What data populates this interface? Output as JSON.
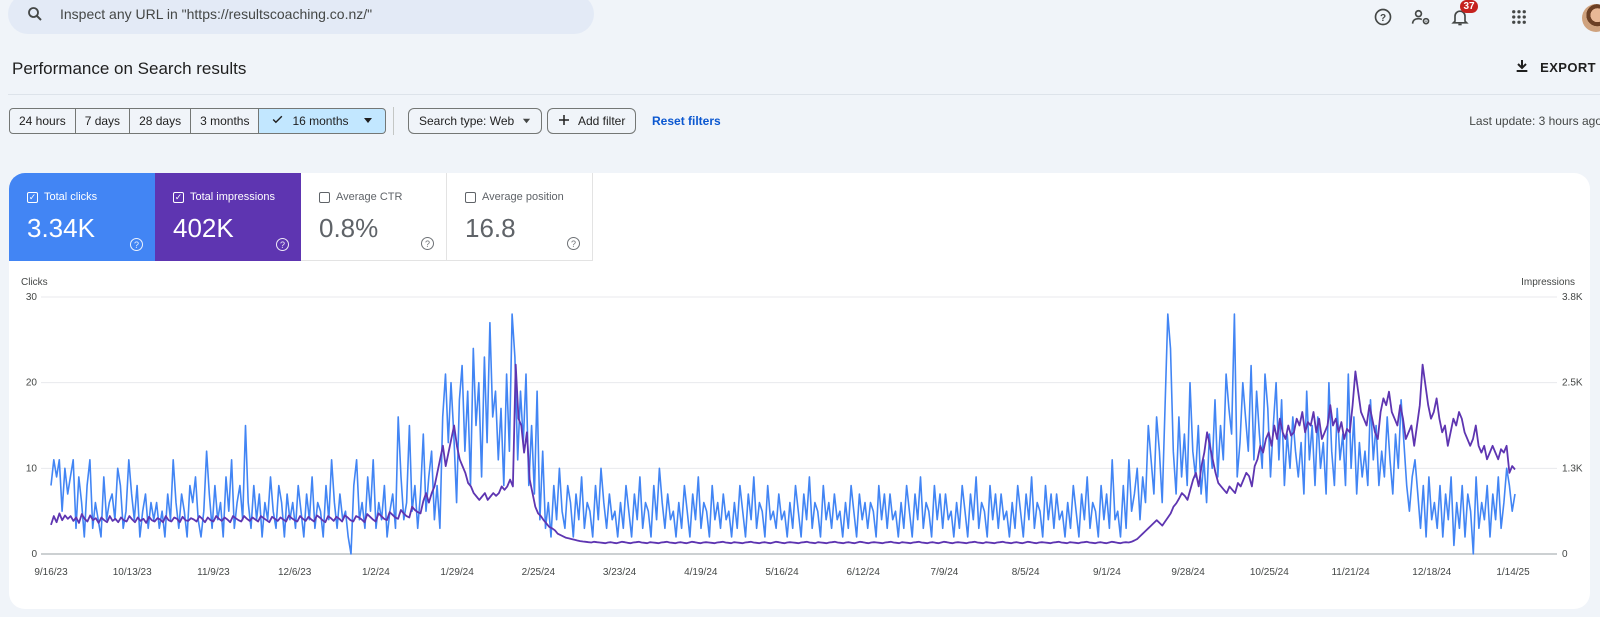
{
  "search": {
    "placeholder": "Inspect any URL in \"https://resultscoaching.co.nz/\""
  },
  "topbar": {
    "notifications_count": "37"
  },
  "page": {
    "title": "Performance on Search results",
    "export_label": "EXPORT"
  },
  "date_ranges": [
    "24 hours",
    "7 days",
    "28 days",
    "3 months",
    "16 months"
  ],
  "date_range_selected": "16 months",
  "filters": {
    "search_type": "Search type: Web",
    "add_filter": "Add filter",
    "reset": "Reset filters",
    "last_update": "Last update: 3 hours ago"
  },
  "metrics": [
    {
      "label": "Total clicks",
      "value": "3.34K",
      "checked": true,
      "color": "#4285f4"
    },
    {
      "label": "Total impressions",
      "value": "402K",
      "checked": true,
      "color": "#5e35b1"
    },
    {
      "label": "Average CTR",
      "value": "0.8%",
      "checked": false
    },
    {
      "label": "Average position",
      "value": "16.8",
      "checked": false
    }
  ],
  "chart_data": {
    "type": "line",
    "left_axis": {
      "label": "Clicks",
      "ticks": [
        "0",
        "10",
        "20",
        "30"
      ],
      "ylim": [
        0,
        30
      ]
    },
    "right_axis": {
      "label": "Impressions",
      "ticks": [
        "0",
        "1.3K",
        "2.5K",
        "3.8K"
      ],
      "ylim": [
        0,
        3800
      ]
    },
    "x_ticks": [
      "9/16/23",
      "10/13/23",
      "11/9/23",
      "12/6/23",
      "1/2/24",
      "1/29/24",
      "2/25/24",
      "3/23/24",
      "4/19/24",
      "5/16/24",
      "6/12/24",
      "7/9/24",
      "8/5/24",
      "9/1/24",
      "9/28/24",
      "10/25/24",
      "11/21/24",
      "12/18/24",
      "1/14/25"
    ],
    "grid": true,
    "series": [
      {
        "name": "Clicks",
        "color": "#4285f4",
        "axis": "left",
        "values": [
          8,
          11,
          9,
          11,
          5,
          10,
          7,
          9,
          11,
          3,
          9,
          6,
          2,
          8,
          11,
          3,
          6,
          4,
          2,
          9,
          4,
          6,
          7,
          4,
          10,
          8,
          3,
          5,
          11,
          7,
          4,
          8,
          2,
          5,
          7,
          3,
          6,
          4,
          6,
          3,
          5,
          2,
          7,
          4,
          11,
          6,
          3,
          7,
          5,
          2,
          8,
          6,
          9,
          4,
          2,
          5,
          12,
          7,
          3,
          8,
          4,
          6,
          2,
          9,
          5,
          11,
          3,
          6,
          8,
          4,
          15,
          6,
          3,
          8,
          4,
          7,
          2,
          6,
          4,
          9,
          5,
          3,
          8,
          6,
          2,
          7,
          4,
          6,
          3,
          8,
          5,
          2,
          7,
          4,
          9,
          3,
          6,
          5,
          2,
          8,
          4,
          11,
          6,
          3,
          7,
          4,
          5,
          2,
          0,
          8,
          11,
          4,
          6,
          3,
          9,
          5,
          11,
          3,
          6,
          4,
          8,
          2,
          5,
          7,
          3,
          16,
          9,
          4,
          6,
          15,
          5,
          8,
          3,
          7,
          14,
          5,
          9,
          12,
          4,
          8,
          3,
          16,
          21,
          13,
          20,
          14,
          6,
          18,
          22,
          12,
          19,
          8,
          24,
          15,
          20,
          9,
          23,
          13,
          27,
          16,
          19,
          11,
          17,
          8,
          21,
          12,
          28,
          23,
          11,
          19,
          13,
          21,
          8,
          15,
          7,
          19,
          4,
          12,
          3,
          6,
          2,
          8,
          4,
          10,
          5,
          3,
          8,
          6,
          2,
          7,
          4,
          9,
          3,
          6,
          5,
          2,
          8,
          4,
          10,
          6,
          3,
          7,
          4,
          5,
          2,
          6,
          3,
          8,
          5,
          2,
          7,
          4,
          9,
          3,
          6,
          5,
          2,
          8,
          4,
          10,
          6,
          3,
          7,
          4,
          5,
          2,
          6,
          3,
          8,
          5,
          2,
          7,
          4,
          9,
          3,
          6,
          5,
          2,
          8,
          4,
          6,
          3,
          7,
          4,
          5,
          2,
          6,
          3,
          8,
          5,
          2,
          7,
          4,
          9,
          3,
          6,
          5,
          2,
          8,
          4,
          5,
          3,
          7,
          4,
          5,
          2,
          6,
          3,
          8,
          5,
          2,
          7,
          4,
          9,
          3,
          6,
          5,
          2,
          8,
          4,
          6,
          3,
          7,
          4,
          5,
          2,
          6,
          3,
          8,
          5,
          2,
          7,
          4,
          6,
          3,
          6,
          5,
          2,
          8,
          4,
          7,
          3,
          7,
          4,
          5,
          2,
          6,
          3,
          8,
          5,
          2,
          7,
          4,
          9,
          3,
          6,
          5,
          2,
          8,
          4,
          7,
          3,
          7,
          4,
          5,
          2,
          6,
          3,
          8,
          5,
          2,
          7,
          4,
          9,
          3,
          6,
          5,
          2,
          8,
          4,
          7,
          3,
          7,
          4,
          5,
          2,
          6,
          3,
          8,
          5,
          2,
          7,
          4,
          9,
          3,
          6,
          5,
          2,
          8,
          4,
          7,
          3,
          7,
          4,
          5,
          2,
          6,
          3,
          8,
          5,
          2,
          7,
          4,
          9,
          3,
          6,
          5,
          2,
          8,
          4,
          7,
          3,
          11,
          4,
          5,
          2,
          8,
          3,
          11,
          5,
          7,
          10,
          4,
          9,
          6,
          15,
          11,
          7,
          16,
          12,
          6,
          17,
          28,
          24,
          12,
          7,
          16,
          9,
          14,
          8,
          20,
          12,
          9,
          15,
          7,
          11,
          6,
          14,
          10,
          18,
          9,
          15,
          11,
          21,
          17,
          14,
          28,
          9,
          13,
          20,
          16,
          12,
          22,
          11,
          19,
          14,
          10,
          21,
          17,
          9,
          15,
          20,
          11,
          18,
          8,
          14,
          10,
          16,
          12,
          9,
          13,
          7,
          19,
          11,
          15,
          8,
          16,
          10,
          13,
          7,
          20,
          12,
          8,
          17,
          11,
          14,
          8,
          21,
          10,
          16,
          7,
          13,
          9,
          12,
          8,
          18,
          11,
          15,
          8,
          12,
          9,
          16,
          11,
          7,
          14,
          10,
          18,
          13,
          8,
          5,
          9,
          11,
          7,
          3,
          8,
          2,
          9,
          4,
          6,
          3,
          8,
          2,
          7,
          4,
          9,
          1,
          6,
          3,
          8,
          2,
          7,
          5,
          0,
          9,
          3,
          6,
          4,
          8,
          2,
          7,
          4,
          9,
          3,
          6,
          10,
          8,
          5,
          7
        ]
      },
      {
        "name": "Impressions",
        "color": "#5e35b1",
        "axis": "right",
        "values": [
          430,
          560,
          470,
          600,
          500,
          570,
          520,
          560,
          490,
          540,
          460,
          590,
          520,
          480,
          570,
          500,
          530,
          460,
          540,
          500,
          470,
          560,
          490,
          520,
          470,
          540,
          500,
          480,
          560,
          510,
          470,
          540,
          490,
          520,
          460,
          550,
          500,
          480,
          530,
          510,
          470,
          560,
          500,
          480,
          540,
          520,
          470,
          550,
          500,
          490,
          530,
          510,
          480,
          560,
          520,
          470,
          540,
          500,
          480,
          560,
          520,
          490,
          540,
          510,
          470,
          560,
          530,
          500,
          480,
          560,
          520,
          490,
          540,
          510,
          480,
          560,
          530,
          500,
          470,
          550,
          520,
          490,
          540,
          510,
          480,
          570,
          530,
          500,
          480,
          560,
          520,
          490,
          550,
          510,
          480,
          570,
          540,
          500,
          470,
          560,
          530,
          490,
          550,
          520,
          480,
          570,
          540,
          500,
          480,
          560,
          540,
          510,
          470,
          590,
          550,
          510,
          480,
          600,
          560,
          520,
          500,
          620,
          580,
          540,
          520,
          650,
          600,
          560,
          540,
          700,
          650,
          620,
          600,
          780,
          900,
          760,
          900,
          1000,
          1200,
          1400,
          1600,
          1300,
          1500,
          1700,
          1900,
          1600,
          1400,
          1300,
          1200,
          1050,
          1000,
          900,
          850,
          800,
          850,
          900,
          800,
          850,
          900,
          860,
          900,
          1000,
          950,
          1000,
          1100,
          1000,
          2800,
          2000,
          1900,
          1500,
          1800,
          1100,
          900,
          700,
          600,
          560,
          500,
          450,
          400,
          380,
          350,
          300,
          280,
          260,
          240,
          230,
          220,
          210,
          200,
          190,
          185,
          180,
          175,
          170,
          180,
          175,
          170,
          165,
          160,
          170,
          175,
          165,
          160,
          170,
          180,
          175,
          165,
          160,
          170,
          175,
          180,
          170,
          165,
          160,
          175,
          170,
          165,
          160,
          170,
          175,
          180,
          170,
          165,
          160,
          170,
          175,
          165,
          160,
          170,
          180,
          175,
          165,
          160,
          170,
          175,
          170,
          165,
          160,
          170,
          175,
          180,
          170,
          165,
          160,
          175,
          170,
          165,
          160,
          170,
          175,
          180,
          170,
          165,
          160,
          170,
          175,
          165,
          160,
          170,
          180,
          175,
          165,
          160,
          170,
          175,
          170,
          165,
          160,
          170,
          175,
          180,
          170,
          165,
          160,
          175,
          170,
          165,
          160,
          170,
          175,
          180,
          170,
          165,
          160,
          170,
          175,
          165,
          160,
          170,
          180,
          175,
          165,
          160,
          170,
          175,
          170,
          165,
          160,
          170,
          175,
          180,
          170,
          165,
          160,
          175,
          170,
          165,
          160,
          170,
          175,
          180,
          170,
          165,
          160,
          170,
          175,
          165,
          160,
          170,
          180,
          175,
          165,
          160,
          170,
          175,
          170,
          165,
          160,
          170,
          175,
          180,
          170,
          165,
          160,
          175,
          170,
          165,
          160,
          170,
          175,
          180,
          170,
          165,
          160,
          170,
          175,
          165,
          160,
          170,
          180,
          175,
          165,
          160,
          170,
          175,
          170,
          165,
          160,
          170,
          175,
          180,
          170,
          165,
          160,
          175,
          170,
          165,
          160,
          170,
          175,
          180,
          170,
          165,
          160,
          170,
          175,
          165,
          160,
          170,
          180,
          175,
          165,
          160,
          170,
          175,
          170,
          180,
          200,
          220,
          260,
          300,
          340,
          380,
          420,
          460,
          500,
          460,
          420,
          480,
          540,
          600,
          700,
          750,
          820,
          900,
          860,
          800,
          950,
          1100,
          1200,
          1000,
          1300,
          1500,
          1800,
          1600,
          1400,
          1200,
          1050,
          1000,
          950,
          900,
          1000,
          950,
          900,
          1050,
          1000,
          1100,
          1200,
          1150,
          1000,
          1300,
          1400,
          1600,
          1500,
          1700,
          1800,
          1600,
          1900,
          1700,
          2000,
          1800,
          1700,
          1900,
          1750,
          1800,
          2000,
          1900,
          2100,
          1800,
          1950,
          1900,
          2100,
          1800,
          2000,
          1700,
          1800,
          1900,
          2200,
          1900,
          2000,
          1800,
          1950,
          1700,
          1850,
          1800,
          2200,
          2700,
          2400,
          2100,
          2000,
          1900,
          2200,
          2000,
          1800,
          1700,
          2100,
          2300,
          2200,
          2400,
          2100,
          2000,
          1900,
          2200,
          2000,
          1700,
          1800,
          1900,
          1600,
          1900,
          2200,
          2800,
          2500,
          2200,
          2000,
          2100,
          2300,
          2000,
          1800,
          1900,
          1600,
          1800,
          2000,
          1900,
          2100,
          2000,
          1800,
          1700,
          1600,
          1700,
          1900,
          1600,
          1500,
          1600,
          1400,
          1500,
          1600,
          1500,
          1400,
          1550,
          1500,
          1600,
          1200,
          1300,
          1250
        ]
      }
    ]
  }
}
